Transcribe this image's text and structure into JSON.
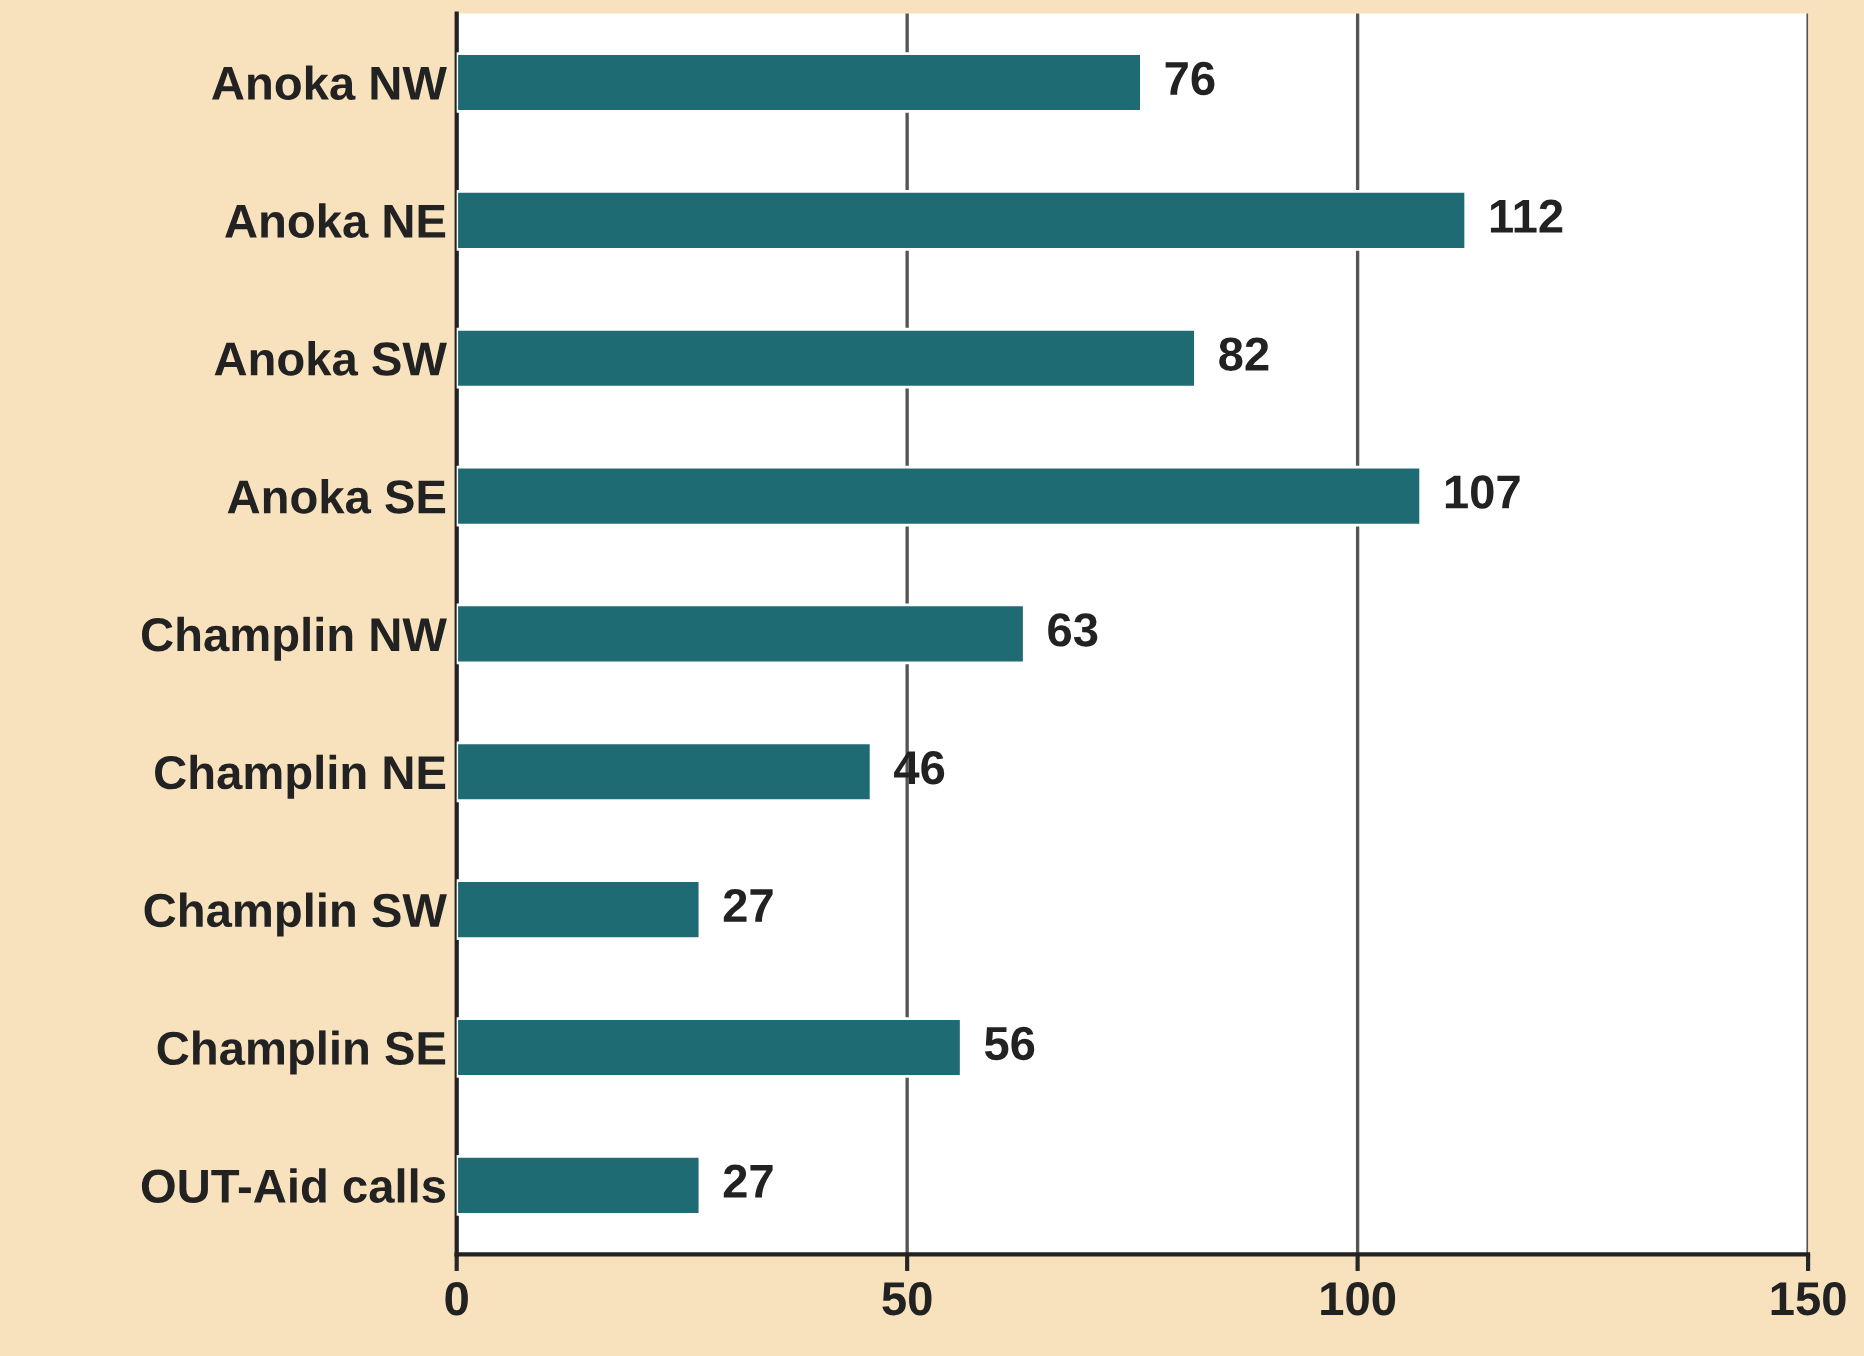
{
  "chart_data": {
    "type": "bar",
    "orientation": "horizontal",
    "categories": [
      "Anoka NW",
      "Anoka NE",
      "Anoka SW",
      "Anoka SE",
      "Champlin NW",
      "Champlin NE",
      "Champlin SW",
      "Champlin SE",
      "OUT-Aid calls"
    ],
    "values": [
      76,
      112,
      82,
      107,
      63,
      46,
      27,
      56,
      27
    ],
    "color": "#1f6b73",
    "xlim": [
      0,
      150
    ],
    "xticks": [
      0,
      50,
      100,
      150
    ],
    "grid": "x",
    "data_labels": true
  }
}
